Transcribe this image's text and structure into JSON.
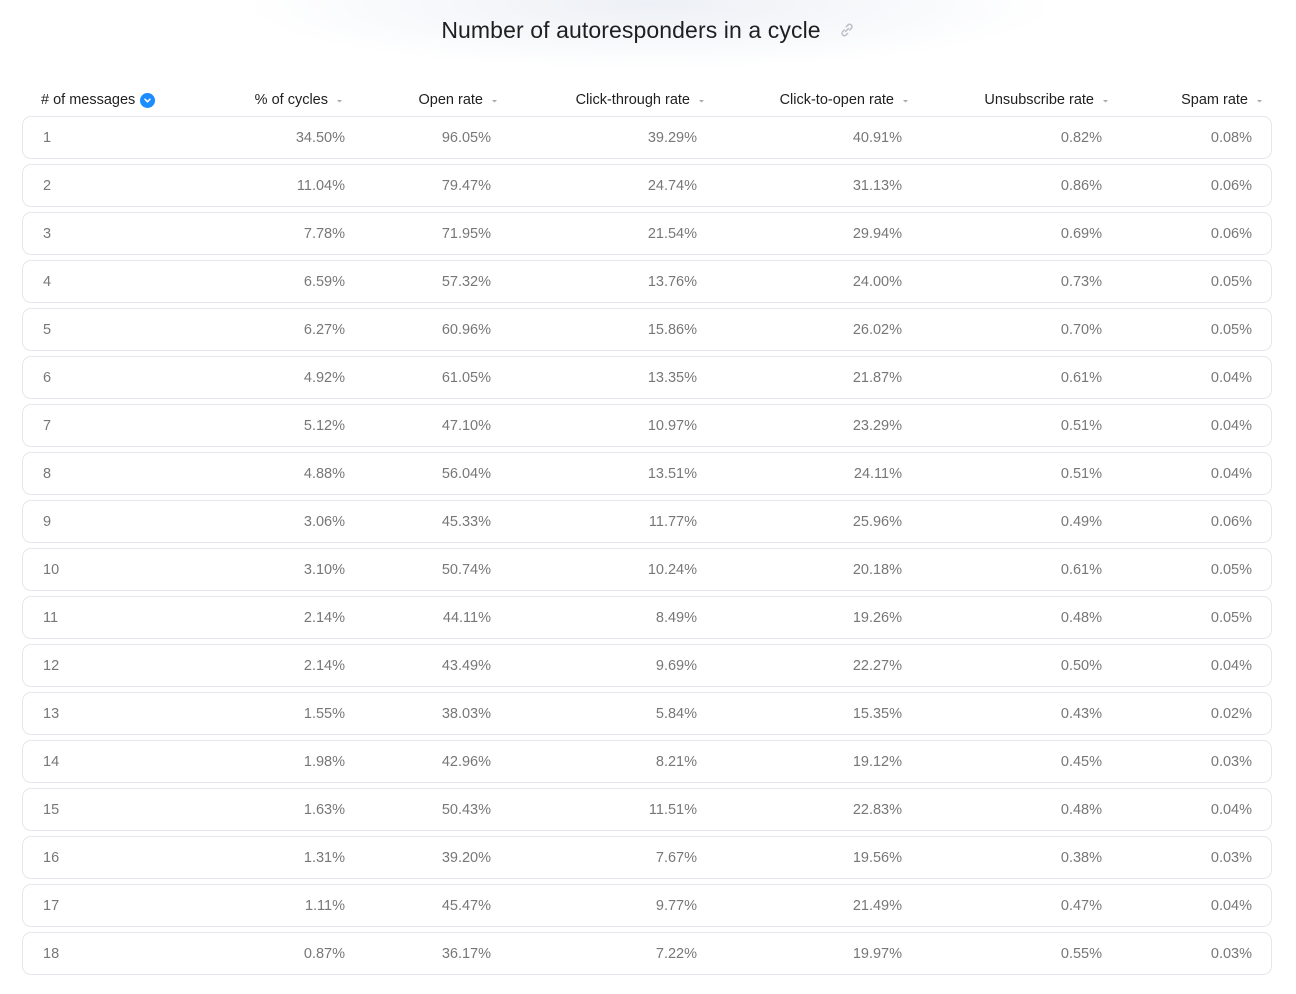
{
  "title": "Number of autoresponders in a cycle",
  "icons": {
    "link": "link-icon",
    "sort_active": "sort-descending-icon",
    "sort": "sort-caret-icon"
  },
  "colors": {
    "accent": "#1a8cff",
    "row_border": "#e5e7ec",
    "text_muted": "#777777"
  },
  "columns": [
    {
      "key": "messages",
      "label": "# of messages",
      "sorted": true
    },
    {
      "key": "cycles",
      "label": "% of cycles",
      "sorted": false
    },
    {
      "key": "open",
      "label": "Open rate",
      "sorted": false
    },
    {
      "key": "ctr",
      "label": "Click-through rate",
      "sorted": false
    },
    {
      "key": "cto",
      "label": "Click-to-open rate",
      "sorted": false
    },
    {
      "key": "unsub",
      "label": "Unsubscribe rate",
      "sorted": false
    },
    {
      "key": "spam",
      "label": "Spam rate",
      "sorted": false
    }
  ],
  "rows": [
    [
      "1",
      "34.50%",
      "96.05%",
      "39.29%",
      "40.91%",
      "0.82%",
      "0.08%"
    ],
    [
      "2",
      "11.04%",
      "79.47%",
      "24.74%",
      "31.13%",
      "0.86%",
      "0.06%"
    ],
    [
      "3",
      "7.78%",
      "71.95%",
      "21.54%",
      "29.94%",
      "0.69%",
      "0.06%"
    ],
    [
      "4",
      "6.59%",
      "57.32%",
      "13.76%",
      "24.00%",
      "0.73%",
      "0.05%"
    ],
    [
      "5",
      "6.27%",
      "60.96%",
      "15.86%",
      "26.02%",
      "0.70%",
      "0.05%"
    ],
    [
      "6",
      "4.92%",
      "61.05%",
      "13.35%",
      "21.87%",
      "0.61%",
      "0.04%"
    ],
    [
      "7",
      "5.12%",
      "47.10%",
      "10.97%",
      "23.29%",
      "0.51%",
      "0.04%"
    ],
    [
      "8",
      "4.88%",
      "56.04%",
      "13.51%",
      "24.11%",
      "0.51%",
      "0.04%"
    ],
    [
      "9",
      "3.06%",
      "45.33%",
      "11.77%",
      "25.96%",
      "0.49%",
      "0.06%"
    ],
    [
      "10",
      "3.10%",
      "50.74%",
      "10.24%",
      "20.18%",
      "0.61%",
      "0.05%"
    ],
    [
      "11",
      "2.14%",
      "44.11%",
      "8.49%",
      "19.26%",
      "0.48%",
      "0.05%"
    ],
    [
      "12",
      "2.14%",
      "43.49%",
      "9.69%",
      "22.27%",
      "0.50%",
      "0.04%"
    ],
    [
      "13",
      "1.55%",
      "38.03%",
      "5.84%",
      "15.35%",
      "0.43%",
      "0.02%"
    ],
    [
      "14",
      "1.98%",
      "42.96%",
      "8.21%",
      "19.12%",
      "0.45%",
      "0.03%"
    ],
    [
      "15",
      "1.63%",
      "50.43%",
      "11.51%",
      "22.83%",
      "0.48%",
      "0.04%"
    ],
    [
      "16",
      "1.31%",
      "39.20%",
      "7.67%",
      "19.56%",
      "0.38%",
      "0.03%"
    ],
    [
      "17",
      "1.11%",
      "45.47%",
      "9.77%",
      "21.49%",
      "0.47%",
      "0.04%"
    ],
    [
      "18",
      "0.87%",
      "36.17%",
      "7.22%",
      "19.97%",
      "0.55%",
      "0.03%"
    ]
  ]
}
